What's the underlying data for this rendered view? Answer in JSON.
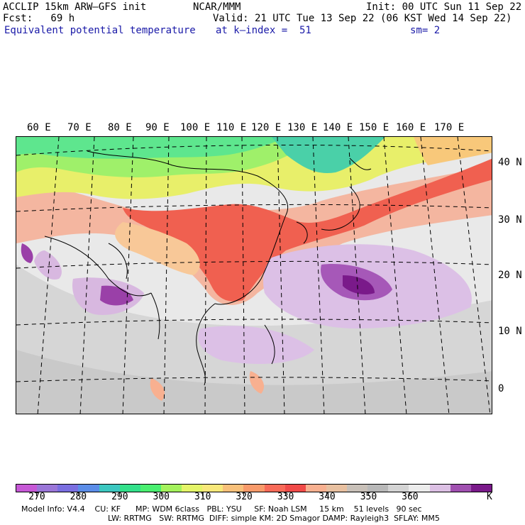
{
  "header": {
    "model": "ACCLIP 15km ARW–GFS init",
    "fcst": "Fcst:   69 h",
    "field": "Equivalent potential temperature",
    "org": "NCAR/MMM",
    "init": "Init: 00 UTC Sun 11 Sep 22",
    "valid": "Valid: 21 UTC Tue 13 Sep 22 (06 KST Wed 14 Sep 22)",
    "level": "at k–index =  51",
    "smooth": "sm= 2"
  },
  "map": {
    "lon_labels": [
      "60 E",
      "70 E",
      "80 E",
      "90 E",
      "100 E",
      "110 E",
      "120 E",
      "130 E",
      "140 E",
      "150 E",
      "160 E",
      "170 E"
    ],
    "lat_labels": [
      "40 N",
      "30 N",
      "20 N",
      "10 N",
      "0"
    ]
  },
  "colorbar": {
    "unit": "K",
    "labels": [
      "270",
      "280",
      "290",
      "300",
      "310",
      "320",
      "330",
      "340",
      "350",
      "360"
    ],
    "colors": [
      "#c658d6",
      "#9a76d8",
      "#7a6ee0",
      "#5b8de8",
      "#3cc7c0",
      "#33e08a",
      "#4aef70",
      "#a4f25c",
      "#e4f468",
      "#f8e87a",
      "#f8c07a",
      "#f89a6a",
      "#f86a58",
      "#f04a48",
      "#f8b090",
      "#e8c0a0",
      "#c8c0b8",
      "#b8b8b8",
      "#d4d4d4",
      "#ececec",
      "#dcc0e4",
      "#a050b0",
      "#7a1a8a"
    ]
  },
  "footer": {
    "line1": "Model Info: V4.4    CU: KF      MP: WDM 6class   PBL: YSU     SF: Noah LSM     15 km    51 levels   90 sec",
    "line2": "LW: RRTMG   SW: RRTMG  DIFF: simple KM: 2D Smagor DAMP: Rayleigh3  SFLAY: MM5"
  }
}
